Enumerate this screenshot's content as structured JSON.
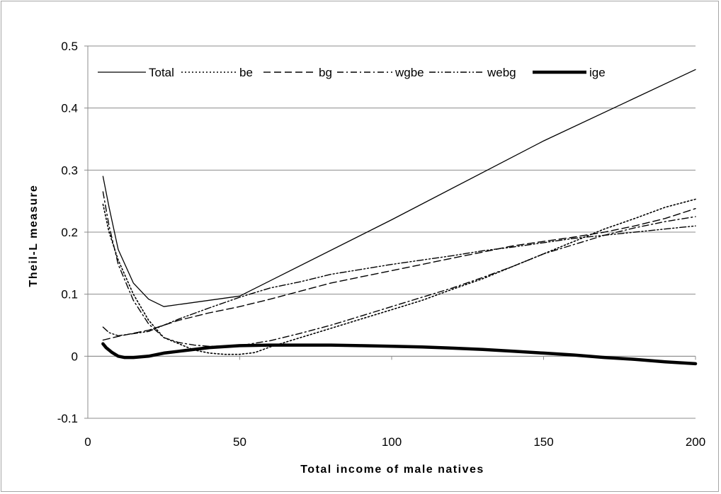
{
  "chart_data": {
    "type": "line",
    "title": "",
    "xlabel": "Total income of male natives",
    "ylabel": "Theil-L measure",
    "xlim": [
      0,
      200
    ],
    "ylim": [
      -0.1,
      0.5
    ],
    "x_ticks": [
      "0",
      "50",
      "100",
      "150",
      "200"
    ],
    "y_ticks": [
      "-0.1",
      "0",
      "0.1",
      "0.2",
      "0.3",
      "0.4",
      "0.5"
    ],
    "grid": "horizontal",
    "legend_position": "top-left inside",
    "series": [
      {
        "name": "Total",
        "style": "solid-thin",
        "points": [
          [
            5,
            0.29
          ],
          [
            7,
            0.24
          ],
          [
            10,
            0.172
          ],
          [
            15,
            0.118
          ],
          [
            20,
            0.092
          ],
          [
            25,
            0.08
          ],
          [
            50,
            0.097
          ],
          [
            100,
            0.22
          ],
          [
            150,
            0.347
          ],
          [
            200,
            0.462
          ]
        ]
      },
      {
        "name": "be",
        "style": "dotted",
        "points": [
          [
            5,
            0.245
          ],
          [
            7,
            0.2
          ],
          [
            10,
            0.155
          ],
          [
            15,
            0.1
          ],
          [
            20,
            0.058
          ],
          [
            25,
            0.03
          ],
          [
            30,
            0.02
          ],
          [
            35,
            0.01
          ],
          [
            40,
            0.005
          ],
          [
            45,
            0.003
          ],
          [
            50,
            0.003
          ],
          [
            55,
            0.006
          ],
          [
            60,
            0.015
          ],
          [
            70,
            0.03
          ],
          [
            80,
            0.045
          ],
          [
            90,
            0.06
          ],
          [
            100,
            0.075
          ],
          [
            110,
            0.09
          ],
          [
            120,
            0.108
          ],
          [
            130,
            0.125
          ],
          [
            140,
            0.145
          ],
          [
            150,
            0.165
          ],
          [
            160,
            0.185
          ],
          [
            170,
            0.205
          ],
          [
            180,
            0.222
          ],
          [
            190,
            0.24
          ],
          [
            200,
            0.253
          ]
        ]
      },
      {
        "name": "bg",
        "style": "dashed",
        "points": [
          [
            5,
            0.026
          ],
          [
            10,
            0.032
          ],
          [
            20,
            0.042
          ],
          [
            30,
            0.058
          ],
          [
            40,
            0.07
          ],
          [
            50,
            0.08
          ],
          [
            60,
            0.092
          ],
          [
            70,
            0.105
          ],
          [
            80,
            0.118
          ],
          [
            90,
            0.128
          ],
          [
            100,
            0.138
          ],
          [
            110,
            0.148
          ],
          [
            120,
            0.158
          ],
          [
            130,
            0.168
          ],
          [
            140,
            0.178
          ],
          [
            150,
            0.185
          ],
          [
            160,
            0.192
          ],
          [
            170,
            0.2
          ],
          [
            180,
            0.21
          ],
          [
            190,
            0.222
          ],
          [
            200,
            0.238
          ]
        ]
      },
      {
        "name": "wgbe",
        "style": "dash-dot",
        "points": [
          [
            5,
            0.265
          ],
          [
            7,
            0.21
          ],
          [
            10,
            0.148
          ],
          [
            15,
            0.09
          ],
          [
            20,
            0.052
          ],
          [
            25,
            0.03
          ],
          [
            30,
            0.022
          ],
          [
            35,
            0.018
          ],
          [
            40,
            0.016
          ],
          [
            50,
            0.017
          ],
          [
            60,
            0.025
          ],
          [
            70,
            0.037
          ],
          [
            80,
            0.05
          ],
          [
            90,
            0.065
          ],
          [
            100,
            0.08
          ],
          [
            110,
            0.095
          ],
          [
            120,
            0.11
          ],
          [
            130,
            0.127
          ],
          [
            140,
            0.145
          ],
          [
            150,
            0.165
          ],
          [
            160,
            0.18
          ],
          [
            170,
            0.195
          ],
          [
            180,
            0.207
          ],
          [
            190,
            0.217
          ],
          [
            200,
            0.225
          ]
        ]
      },
      {
        "name": "webg",
        "style": "dash-dot-dot",
        "points": [
          [
            5,
            0.047
          ],
          [
            7,
            0.038
          ],
          [
            10,
            0.033
          ],
          [
            20,
            0.04
          ],
          [
            30,
            0.06
          ],
          [
            40,
            0.078
          ],
          [
            50,
            0.095
          ],
          [
            60,
            0.11
          ],
          [
            70,
            0.12
          ],
          [
            80,
            0.132
          ],
          [
            90,
            0.14
          ],
          [
            100,
            0.148
          ],
          [
            110,
            0.155
          ],
          [
            120,
            0.162
          ],
          [
            130,
            0.17
          ],
          [
            140,
            0.176
          ],
          [
            150,
            0.183
          ],
          [
            160,
            0.19
          ],
          [
            170,
            0.195
          ],
          [
            180,
            0.2
          ],
          [
            190,
            0.205
          ],
          [
            200,
            0.21
          ]
        ]
      },
      {
        "name": "ige",
        "style": "solid-thick",
        "points": [
          [
            5,
            0.02
          ],
          [
            6,
            0.014
          ],
          [
            8,
            0.006
          ],
          [
            10,
            0.0
          ],
          [
            12,
            -0.002
          ],
          [
            15,
            -0.002
          ],
          [
            20,
            0.0
          ],
          [
            25,
            0.005
          ],
          [
            30,
            0.008
          ],
          [
            40,
            0.014
          ],
          [
            50,
            0.017
          ],
          [
            60,
            0.018
          ],
          [
            70,
            0.018
          ],
          [
            80,
            0.018
          ],
          [
            90,
            0.017
          ],
          [
            100,
            0.016
          ],
          [
            110,
            0.015
          ],
          [
            120,
            0.013
          ],
          [
            130,
            0.011
          ],
          [
            140,
            0.008
          ],
          [
            150,
            0.005
          ],
          [
            160,
            0.002
          ],
          [
            170,
            -0.002
          ],
          [
            180,
            -0.005
          ],
          [
            190,
            -0.009
          ],
          [
            200,
            -0.012
          ]
        ]
      }
    ]
  }
}
